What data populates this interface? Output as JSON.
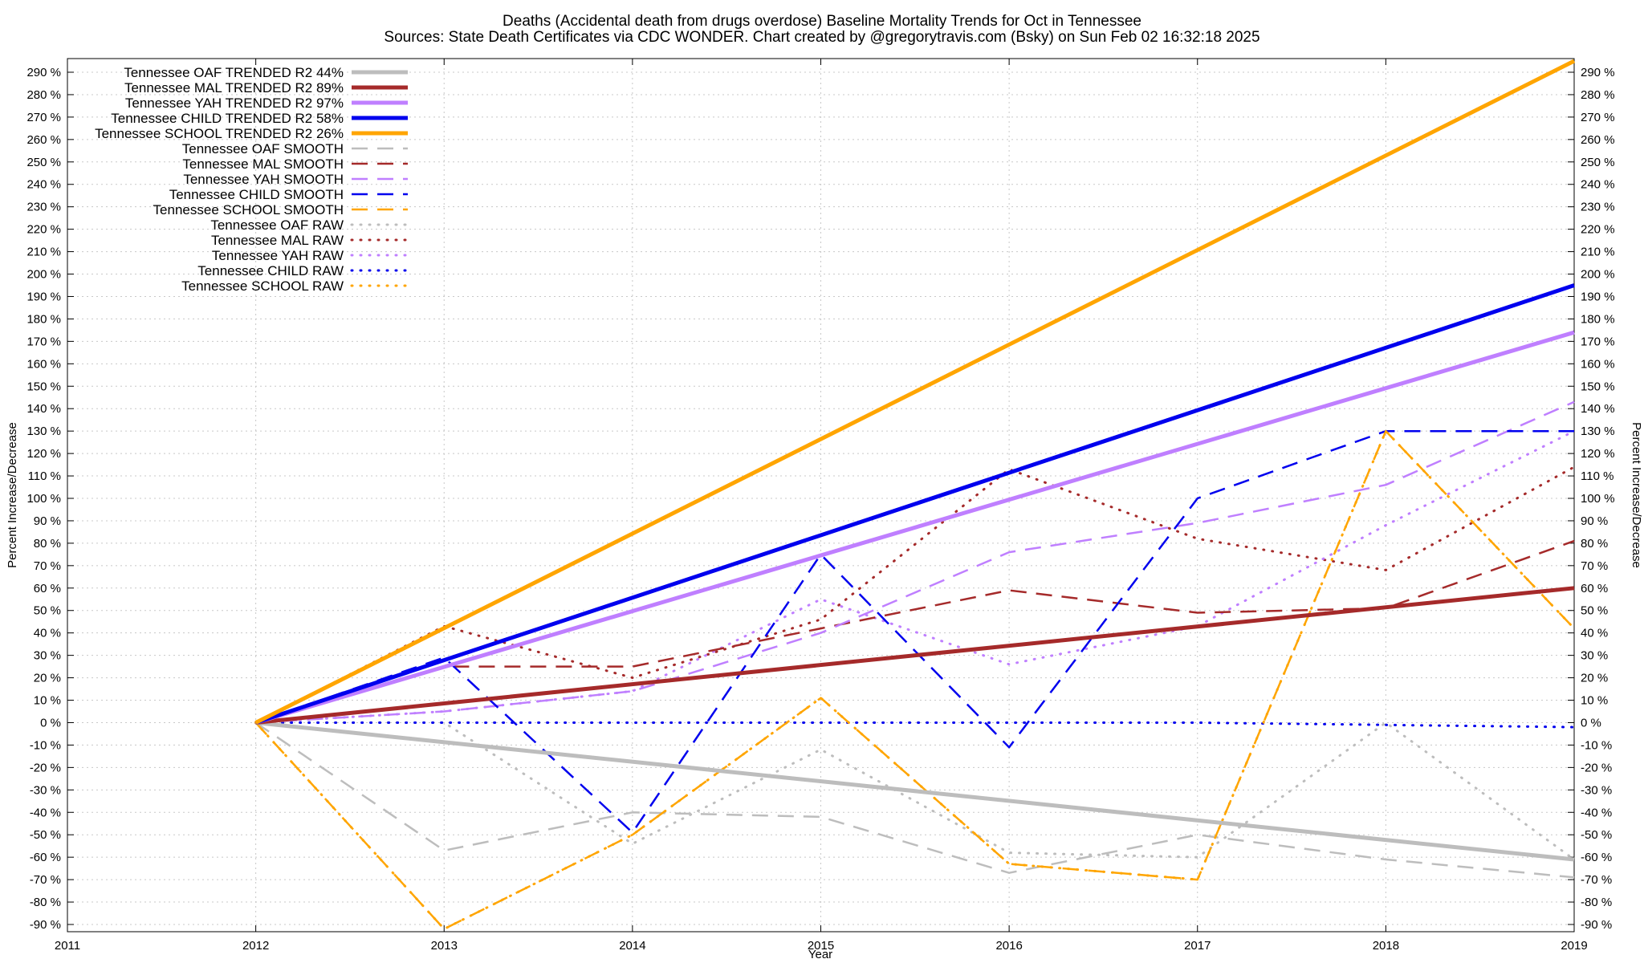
{
  "chart_data": {
    "type": "line",
    "title": "Deaths (Accidental death from drugs overdose)  Baseline Mortality Trends for Oct in Tennessee",
    "subtitle": "Sources: State Death Certificates via CDC WONDER.              Chart created by @gregorytravis.com (Bsky) on Sun Feb 02 16:32:18 2025",
    "xlabel": "Year",
    "ylabel": "Percent Increase/Decrease",
    "ylabel_right": "Percent Increase/Decrease",
    "xlim": [
      2011,
      2019
    ],
    "ylim": [
      -90,
      290
    ],
    "x_ticks": [
      "2011",
      "2012",
      "2013",
      "2014",
      "2015",
      "2016",
      "2017",
      "2018",
      "2019"
    ],
    "y_ticks": [
      "290 %",
      "280 %",
      "270 %",
      "260 %",
      "250 %",
      "240 %",
      "230 %",
      "220 %",
      "210 %",
      "200 %",
      "190 %",
      "180 %",
      "170 %",
      "160 %",
      "150 %",
      "140 %",
      "130 %",
      "120 %",
      "110 %",
      "100 %",
      "90 %",
      "80 %",
      "70 %",
      "60 %",
      "50 %",
      "40 %",
      "30 %",
      "20 %",
      "10 %",
      "0 %",
      "-10 %",
      "-20 %",
      "-30 %",
      "-40 %",
      "-50 %",
      "-60 %",
      "-70 %",
      "-80 %",
      "-90 %"
    ],
    "grid": true,
    "legend_position": "top-left",
    "series": [
      {
        "name": "Tennessee OAF TRENDED R2  44%",
        "color": "#bdbdbd",
        "style": "solid",
        "x": [
          2012,
          2019
        ],
        "values": [
          0,
          -61
        ]
      },
      {
        "name": "Tennessee MAL TRENDED R2  89%",
        "color": "#a52a2a",
        "style": "solid",
        "x": [
          2012,
          2019
        ],
        "values": [
          0,
          60
        ]
      },
      {
        "name": "Tennessee YAH TRENDED R2  97%",
        "color": "#bf7fff",
        "style": "solid",
        "x": [
          2012,
          2019
        ],
        "values": [
          0,
          174
        ]
      },
      {
        "name": "Tennessee CHILD TRENDED R2  58%",
        "color": "#0000ee",
        "style": "solid",
        "x": [
          2012,
          2019
        ],
        "values": [
          0,
          195
        ]
      },
      {
        "name": "Tennessee SCHOOL TRENDED R2  26%",
        "color": "#ffa500",
        "style": "solid",
        "x": [
          2012,
          2019
        ],
        "values": [
          0,
          295
        ]
      },
      {
        "name": "Tennessee OAF SMOOTH",
        "color": "#bdbdbd",
        "style": "dash",
        "x": [
          2012,
          2013,
          2014,
          2015,
          2016,
          2017,
          2018,
          2019
        ],
        "values": [
          0,
          -57,
          -40,
          -42,
          -67,
          -50,
          -61,
          -69
        ]
      },
      {
        "name": "Tennessee MAL SMOOTH",
        "color": "#a52a2a",
        "style": "dash",
        "x": [
          2012,
          2013,
          2014,
          2015,
          2016,
          2017,
          2018,
          2019
        ],
        "values": [
          0,
          25,
          25,
          42,
          59,
          49,
          51,
          81
        ]
      },
      {
        "name": "Tennessee YAH SMOOTH",
        "color": "#bf7fff",
        "style": "dash",
        "x": [
          2012,
          2013,
          2014,
          2015,
          2016,
          2017,
          2018,
          2019
        ],
        "values": [
          0,
          5,
          14,
          40,
          76,
          89,
          106,
          143
        ]
      },
      {
        "name": "Tennessee CHILD SMOOTH",
        "color": "#0000ee",
        "style": "dash",
        "x": [
          2012,
          2013,
          2014,
          2015,
          2016,
          2017,
          2018,
          2019
        ],
        "values": [
          0,
          29,
          -49,
          75,
          -11,
          100,
          130,
          130
        ]
      },
      {
        "name": "Tennessee SCHOOL SMOOTH",
        "color": "#ffa500",
        "style": "dash",
        "x": [
          2012,
          2013,
          2014,
          2015,
          2016,
          2017,
          2018,
          2019
        ],
        "values": [
          0,
          -92,
          -50,
          11,
          -63,
          -70,
          130,
          42
        ]
      },
      {
        "name": "Tennessee OAF RAW",
        "color": "#bdbdbd",
        "style": "dot",
        "x": [
          2012,
          2013,
          2014,
          2015,
          2016,
          2017,
          2018,
          2019
        ],
        "values": [
          0,
          0,
          -54,
          -12,
          -58,
          -60,
          0,
          -61
        ]
      },
      {
        "name": "Tennessee MAL RAW",
        "color": "#a52a2a",
        "style": "dot",
        "x": [
          2012,
          2013,
          2014,
          2015,
          2016,
          2017,
          2018,
          2019
        ],
        "values": [
          0,
          43,
          20,
          46,
          113,
          82,
          68,
          114
        ]
      },
      {
        "name": "Tennessee YAH RAW",
        "color": "#bf7fff",
        "style": "dot",
        "x": [
          2012,
          2013,
          2014,
          2015,
          2016,
          2017,
          2018,
          2019
        ],
        "values": [
          0,
          5,
          14,
          55,
          26,
          43,
          88,
          130
        ]
      },
      {
        "name": "Tennessee CHILD RAW",
        "color": "#0000ee",
        "style": "dot",
        "x": [
          2012,
          2013,
          2014,
          2015,
          2016,
          2017,
          2018,
          2019
        ],
        "values": [
          0,
          0,
          0,
          0,
          0,
          0,
          -1,
          -2
        ]
      },
      {
        "name": "Tennessee SCHOOL RAW",
        "color": "#ffa500",
        "style": "dot",
        "x": [
          2012,
          2013,
          2014,
          2015,
          2016,
          2017,
          2018,
          2019
        ],
        "values": [
          0,
          -92,
          -50,
          11,
          -63,
          -70,
          130,
          42
        ]
      }
    ]
  }
}
